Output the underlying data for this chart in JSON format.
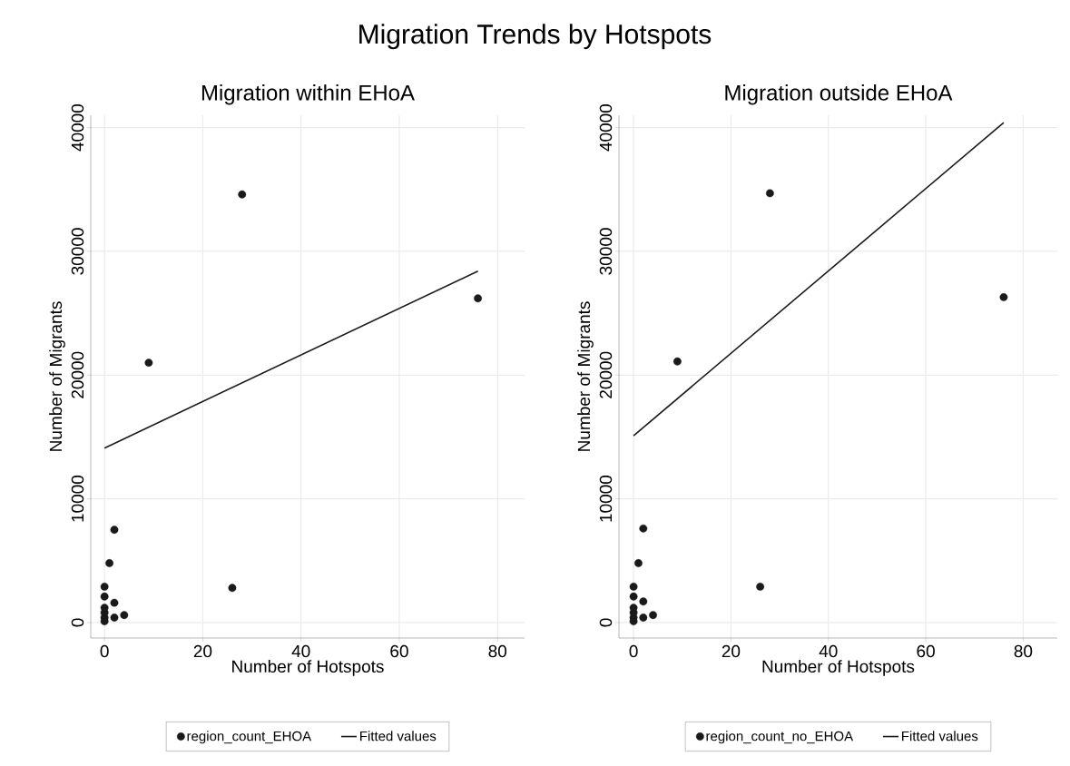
{
  "chart_data": [
    {
      "type": "scatter",
      "title": "Migration Trends by Hotspots",
      "subtitle": "Migration within EHoA",
      "xlabel": "Number of Hotspots",
      "ylabel": "Number of Migrants",
      "xlim": [
        -2.8,
        85.5
      ],
      "ylim": [
        -1250,
        41000
      ],
      "xticks": [
        0,
        20,
        40,
        60,
        80
      ],
      "yticks": [
        0,
        10000,
        20000,
        30000,
        40000
      ],
      "grid": true,
      "legend": "bottom",
      "series": [
        {
          "name": "region_count_EHOA",
          "marker": "circle",
          "color": "#1a1a1a",
          "x": [
            0,
            0,
            0,
            0,
            0,
            0,
            1,
            2,
            2,
            2,
            4,
            9,
            26,
            28,
            76
          ],
          "values": [
            100,
            400,
            800,
            1200,
            2100,
            2900,
            4800,
            7500,
            1600,
            400,
            600,
            21000,
            2800,
            34600,
            26200
          ]
        },
        {
          "name": "Fitted values",
          "type": "line",
          "marker": "none",
          "line_style": "solid",
          "color": "#1a1a1a",
          "x": [
            0,
            76
          ],
          "values": [
            14100,
            28400
          ]
        }
      ]
    },
    {
      "type": "scatter",
      "subtitle": "Migration outside EHoA",
      "xlabel": "Number of Hotspots",
      "ylabel": "Number of Migrants",
      "xlim": [
        -3.0,
        87.0
      ],
      "ylim": [
        -1250,
        41000
      ],
      "xticks": [
        0,
        20,
        40,
        60,
        80
      ],
      "yticks": [
        0,
        10000,
        20000,
        30000,
        40000
      ],
      "grid": true,
      "legend": "bottom",
      "series": [
        {
          "name": "region_count_no_EHOA",
          "marker": "circle",
          "color": "#1a1a1a",
          "x": [
            0,
            0,
            0,
            0,
            0,
            0,
            1,
            2,
            2,
            2,
            4,
            9,
            26,
            28,
            76
          ],
          "values": [
            100,
            400,
            800,
            1200,
            2100,
            2900,
            4800,
            7600,
            1700,
            400,
            600,
            21100,
            2900,
            34700,
            26300
          ]
        },
        {
          "name": "Fitted values",
          "type": "line",
          "marker": "none",
          "line_style": "solid",
          "color": "#1a1a1a",
          "x": [
            0,
            76
          ],
          "values": [
            15100,
            40400
          ]
        }
      ]
    }
  ]
}
